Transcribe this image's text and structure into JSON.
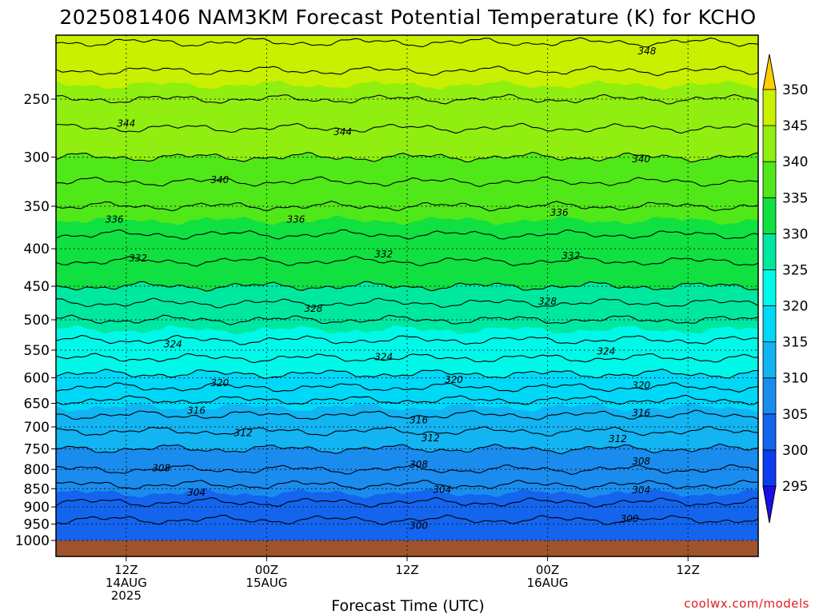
{
  "chart_data": {
    "type": "heatmap",
    "title": "2025081406 NAM3KM Forecast Potential Temperature (K) for KCHO",
    "xlabel": "Forecast Time (UTC)",
    "ylabel": "",
    "credit": "coolwx.com/models",
    "y_axis": {
      "scale": "log-pressure",
      "ylim": [
        1000,
        200
      ],
      "ticks": [
        250,
        300,
        350,
        400,
        450,
        500,
        550,
        600,
        650,
        700,
        750,
        800,
        850,
        900,
        950,
        1000
      ],
      "tick_labels": [
        "250",
        "300",
        "350",
        "400",
        "450",
        "500",
        "550",
        "600",
        "650",
        "700",
        "750",
        "800",
        "850",
        "900",
        "950",
        "1000"
      ]
    },
    "x_axis": {
      "xlim_hours": [
        0,
        60
      ],
      "ticks": [
        {
          "hour": 6,
          "lines": [
            "12Z",
            "14AUG",
            "2025"
          ]
        },
        {
          "hour": 18,
          "lines": [
            "00Z",
            "15AUG"
          ]
        },
        {
          "hour": 30,
          "lines": [
            "12Z"
          ]
        },
        {
          "hour": 42,
          "lines": [
            "00Z",
            "16AUG"
          ]
        },
        {
          "hour": 54,
          "lines": [
            "12Z"
          ]
        }
      ]
    },
    "colorbar": {
      "levels": [
        295,
        300,
        305,
        310,
        315,
        320,
        325,
        330,
        335,
        340,
        345,
        350
      ],
      "labels": [
        "295",
        "300",
        "305",
        "310",
        "315",
        "320",
        "325",
        "330",
        "335",
        "340",
        "345",
        "350"
      ],
      "colors": [
        "#1a0ee8",
        "#0a3cf0",
        "#1464ee",
        "#1a8cee",
        "#12b4f2",
        "#00d8f8",
        "#00f8e8",
        "#00e8a0",
        "#10e040",
        "#50e818",
        "#90ee10",
        "#c8f000",
        "#f8f000",
        "#ffd000"
      ],
      "extend": "both"
    },
    "theta_profile": {
      "pressure_hpa": [
        1000,
        950,
        900,
        850,
        800,
        750,
        700,
        650,
        600,
        550,
        500,
        450,
        400,
        350,
        300,
        250,
        200
      ],
      "theta_k": [
        301,
        301.5,
        303.5,
        305.5,
        308,
        310,
        312.5,
        315.5,
        319.5,
        323,
        326,
        330,
        333,
        336,
        340,
        344,
        349
      ]
    },
    "contour_interval_k": 2,
    "contour_labels": [
      {
        "value": 348,
        "hour": 50.5,
        "p": 215
      },
      {
        "value": 344,
        "hour": 6,
        "p": 270
      },
      {
        "value": 344,
        "hour": 24.5,
        "p": 277
      },
      {
        "value": 340,
        "hour": 14,
        "p": 322
      },
      {
        "value": 340,
        "hour": 50,
        "p": 302
      },
      {
        "value": 336,
        "hour": 5,
        "p": 365
      },
      {
        "value": 336,
        "hour": 20.5,
        "p": 365
      },
      {
        "value": 336,
        "hour": 43,
        "p": 357
      },
      {
        "value": 332,
        "hour": 7,
        "p": 412
      },
      {
        "value": 332,
        "hour": 28,
        "p": 407
      },
      {
        "value": 332,
        "hour": 44,
        "p": 409
      },
      {
        "value": 328,
        "hour": 22,
        "p": 483
      },
      {
        "value": 328,
        "hour": 42,
        "p": 472
      },
      {
        "value": 324,
        "hour": 10,
        "p": 540
      },
      {
        "value": 324,
        "hour": 28,
        "p": 562
      },
      {
        "value": 324,
        "hour": 47,
        "p": 552
      },
      {
        "value": 320,
        "hour": 14,
        "p": 610
      },
      {
        "value": 320,
        "hour": 34,
        "p": 604
      },
      {
        "value": 320,
        "hour": 50,
        "p": 614
      },
      {
        "value": 316,
        "hour": 12,
        "p": 665
      },
      {
        "value": 316,
        "hour": 31,
        "p": 685
      },
      {
        "value": 316,
        "hour": 50,
        "p": 670
      },
      {
        "value": 312,
        "hour": 16,
        "p": 713
      },
      {
        "value": 312,
        "hour": 32,
        "p": 725
      },
      {
        "value": 312,
        "hour": 48,
        "p": 727
      },
      {
        "value": 308,
        "hour": 9,
        "p": 797
      },
      {
        "value": 308,
        "hour": 31,
        "p": 788
      },
      {
        "value": 308,
        "hour": 50,
        "p": 780
      },
      {
        "value": 304,
        "hour": 12,
        "p": 860
      },
      {
        "value": 304,
        "hour": 33,
        "p": 853
      },
      {
        "value": 304,
        "hour": 50,
        "p": 854
      },
      {
        "value": 300,
        "hour": 31,
        "p": 955
      },
      {
        "value": 300,
        "hour": 49,
        "p": 935
      }
    ]
  }
}
